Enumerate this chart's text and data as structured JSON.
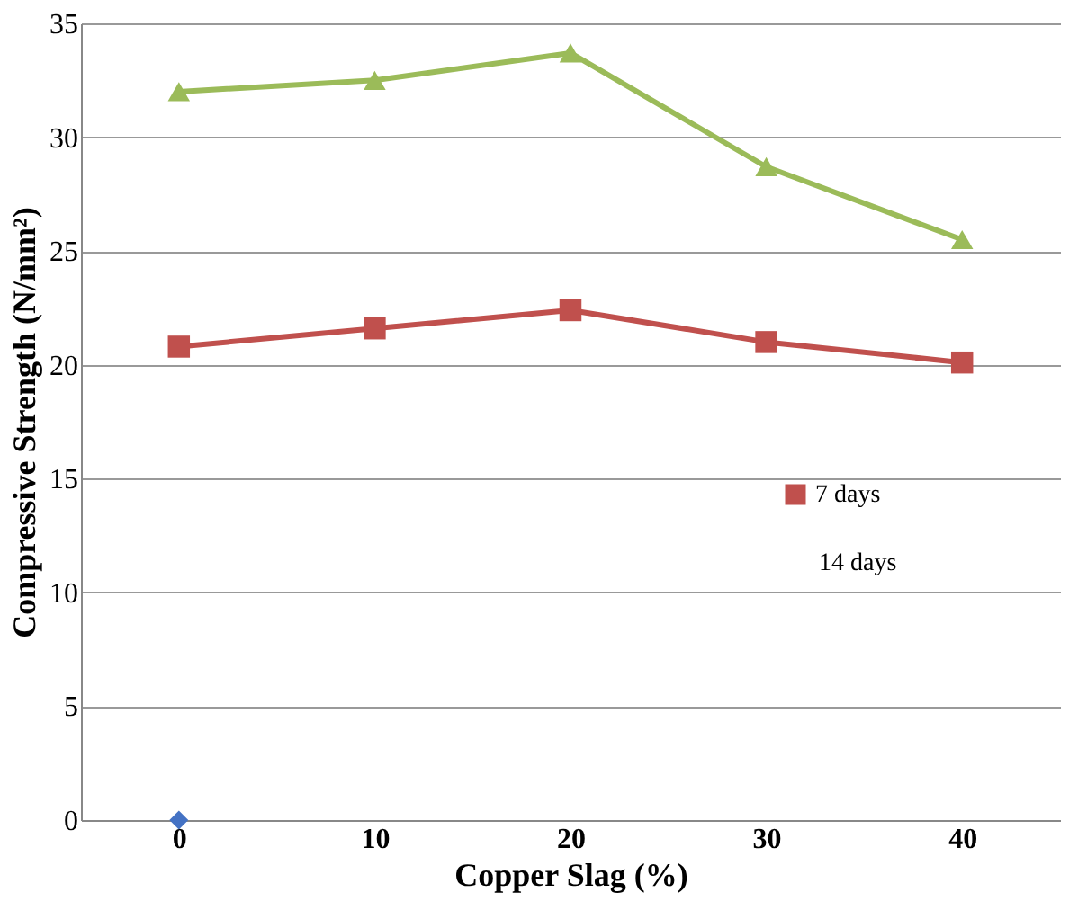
{
  "chart_data": {
    "type": "line",
    "xlabel": "Copper Slag (%)",
    "ylabel": "Compressive Strength (N/mm²)",
    "categories": [
      "0",
      "10",
      "20",
      "30",
      "40"
    ],
    "ylim": [
      0,
      35
    ],
    "yticks": [
      0,
      5,
      10,
      15,
      20,
      25,
      30,
      35
    ],
    "grid": "y",
    "legend": "right",
    "line_style": "solid",
    "series": [
      {
        "type": "scatter",
        "color": "#4472c4",
        "marker": "diamond",
        "values": [
          0,
          null,
          null,
          null,
          null
        ]
      },
      {
        "name": "7 days",
        "color": "#c0504d",
        "marker": "square",
        "values": [
          20.8,
          21.6,
          22.4,
          21.0,
          20.1
        ]
      },
      {
        "color": "#9bbb59",
        "marker": "triangle",
        "values": [
          32.0,
          32.5,
          33.7,
          28.7,
          25.5
        ]
      }
    ],
    "annotations": [
      "14 days"
    ]
  }
}
